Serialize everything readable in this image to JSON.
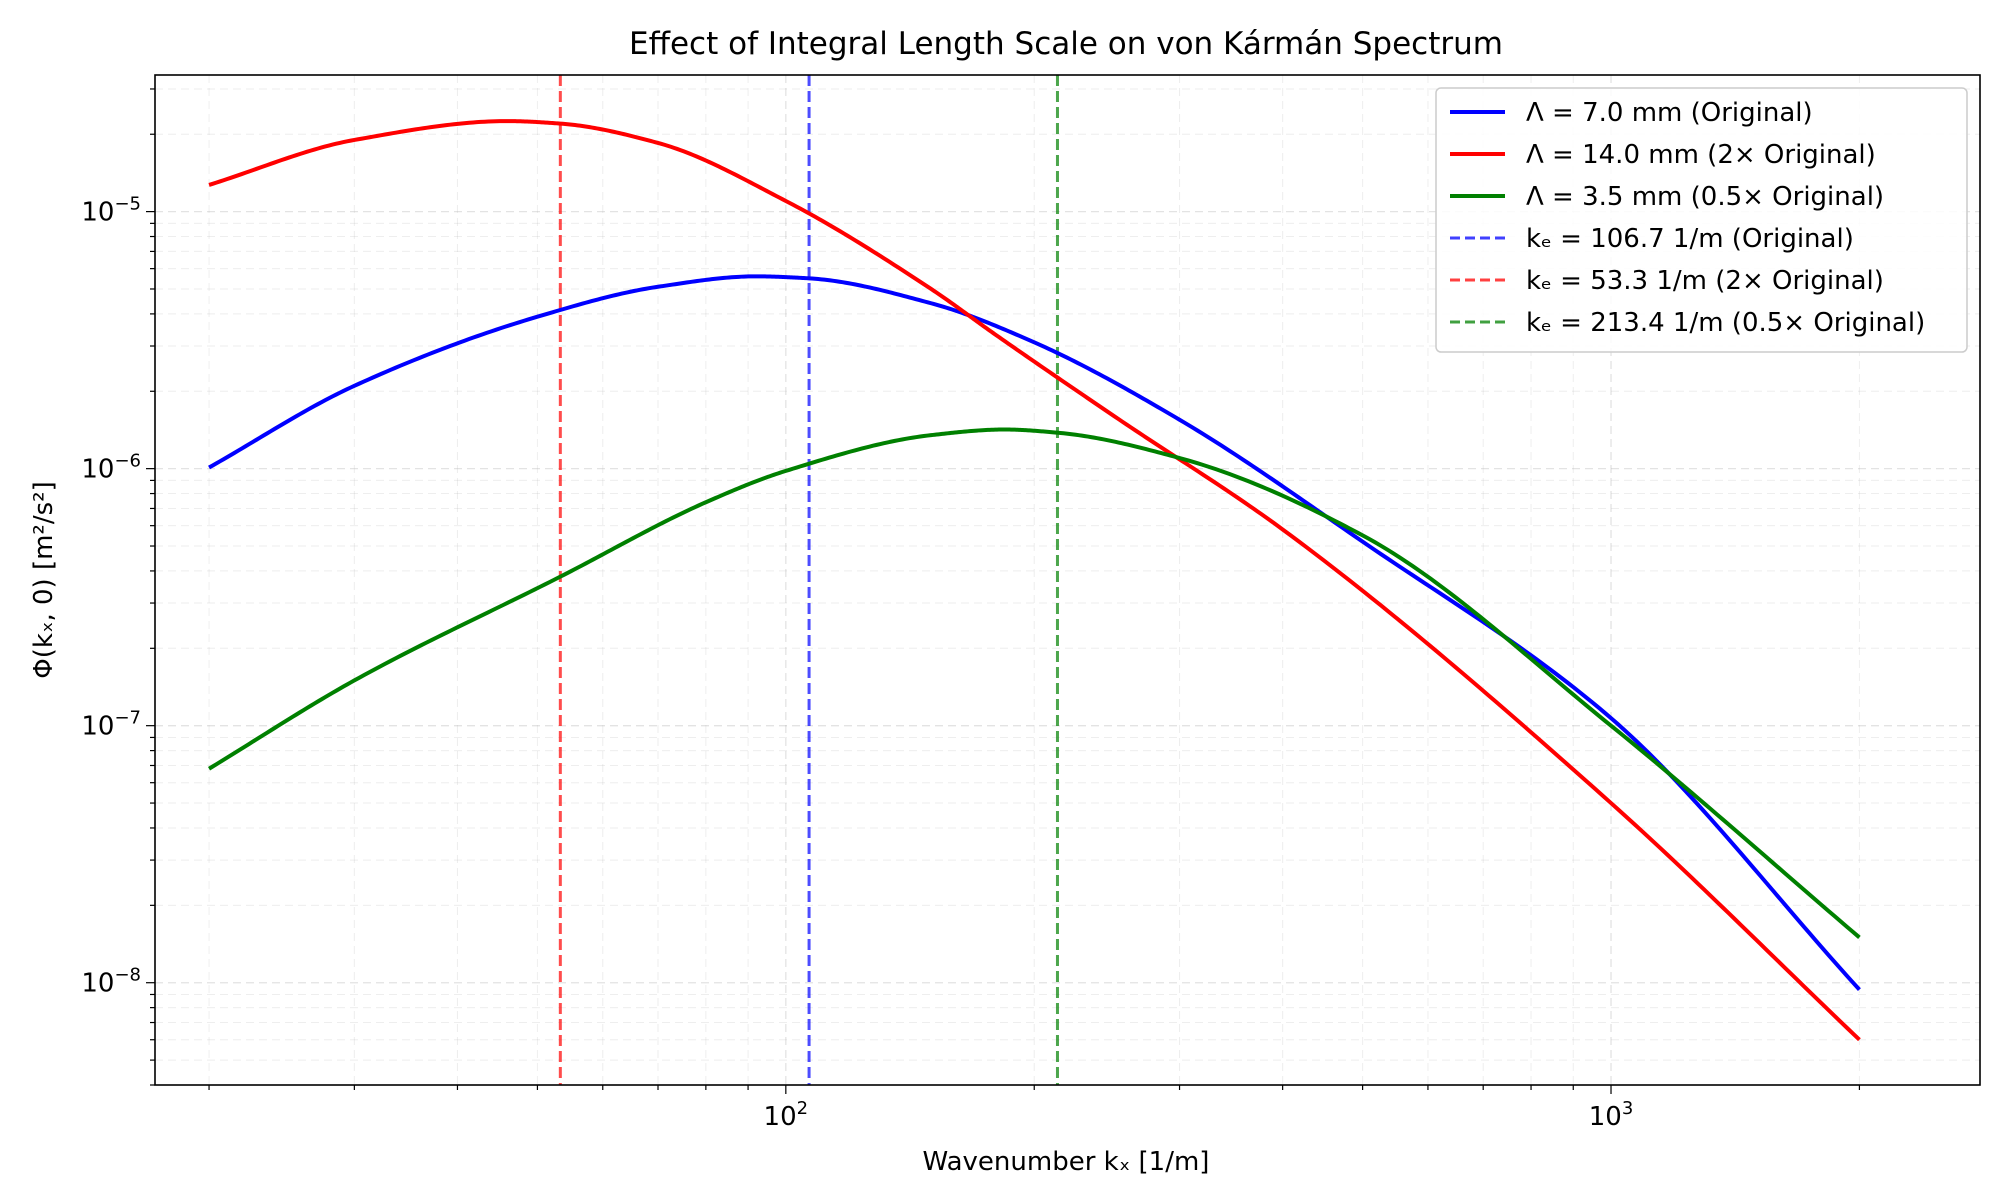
{
  "chart_data": {
    "type": "line",
    "title": "Effect of Integral Length Scale on von Kármán Spectrum",
    "xlabel": "Wavenumber kₓ [1/m]",
    "ylabel": "Φ(kₓ, 0) [m²/s²]",
    "xscale": "log",
    "yscale": "log",
    "xlim": [
      17.2,
      2800
    ],
    "ylim": [
      4e-09,
      3.4e-05
    ],
    "x_ticks": [
      {
        "value": 100,
        "base": "10",
        "exp": "2"
      },
      {
        "value": 1000,
        "base": "10",
        "exp": "3"
      }
    ],
    "y_ticks": [
      {
        "value": 1e-08,
        "base": "10",
        "exp": "−8"
      },
      {
        "value": 1e-07,
        "base": "10",
        "exp": "−7"
      },
      {
        "value": 1e-06,
        "base": "10",
        "exp": "−6"
      },
      {
        "value": 1e-05,
        "base": "10",
        "exp": "−5"
      }
    ],
    "grid": true,
    "legend_position": "upper right",
    "series": [
      {
        "name": "Λ = 7.0 mm (Original)",
        "color": "#0000ff",
        "x": [
          20,
          30,
          50,
          70,
          92,
          106.7,
          150,
          200,
          300,
          500,
          1000,
          2000
        ],
        "y": [
          1.01e-06,
          2.1e-06,
          3.9e-06,
          5.1e-06,
          5.6e-06,
          5.5e-06,
          4.4e-06,
          3.1e-06,
          1.55e-06,
          5.2e-07,
          1.07e-07,
          9.4e-09
        ]
      },
      {
        "name": "Λ = 14.0 mm (2× Original)",
        "color": "#ff0000",
        "x": [
          20,
          30,
          46,
          53.3,
          70,
          100,
          150,
          180,
          250,
          400,
          1000,
          2000
        ],
        "y": [
          1.27e-05,
          1.9e-05,
          2.25e-05,
          2.2e-05,
          1.85e-05,
          1.1e-05,
          5e-06,
          3.3e-06,
          1.6e-06,
          5.8e-07,
          5e-08,
          6e-09
        ]
      },
      {
        "name": "Λ = 3.5 mm (0.5× Original)",
        "color": "#008000",
        "x": [
          20,
          30,
          53.3,
          80,
          100,
          150,
          184,
          213.4,
          300,
          500,
          1000,
          2000
        ],
        "y": [
          6.8e-08,
          1.5e-07,
          3.8e-07,
          7.4e-07,
          9.8e-07,
          1.35e-06,
          1.42e-06,
          1.38e-06,
          1.1e-06,
          5.5e-07,
          1e-07,
          1.5e-08
        ]
      }
    ],
    "vlines": [
      {
        "name": "kₑ = 106.7 1/m (Original)",
        "x": 106.7,
        "color": "#0000ff"
      },
      {
        "name": "kₑ = 53.3 1/m (2× Original)",
        "x": 53.3,
        "color": "#ff0000"
      },
      {
        "name": "kₑ = 213.4 1/m (0.5× Original)",
        "x": 213.4,
        "color": "#008000"
      }
    ]
  }
}
